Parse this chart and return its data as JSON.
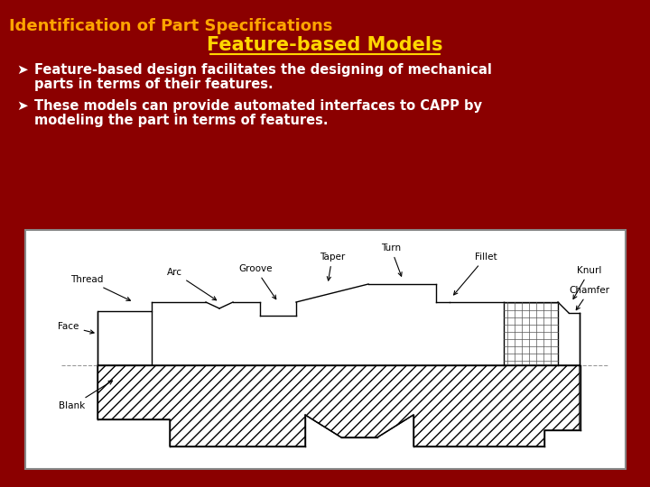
{
  "bg_color": "#8B0000",
  "title_line1": "Identification of Part Specifications",
  "title_line2": "Feature-based Models",
  "title_line1_color": "#FFA500",
  "title_line2_color": "#FFD700",
  "bullet1_line1": "Feature-based design facilitates the designing of mechanical",
  "bullet1_line2": "parts in terms of their features.",
  "bullet2_line1": "These models can provide automated interfaces to CAPP by",
  "bullet2_line2": "modeling the part in terms of features.",
  "bullet_color": "#FFFFFF",
  "bullet_symbol": "Ø",
  "diagram_bg": "#FFFFFF",
  "diagram_border": "#000000"
}
